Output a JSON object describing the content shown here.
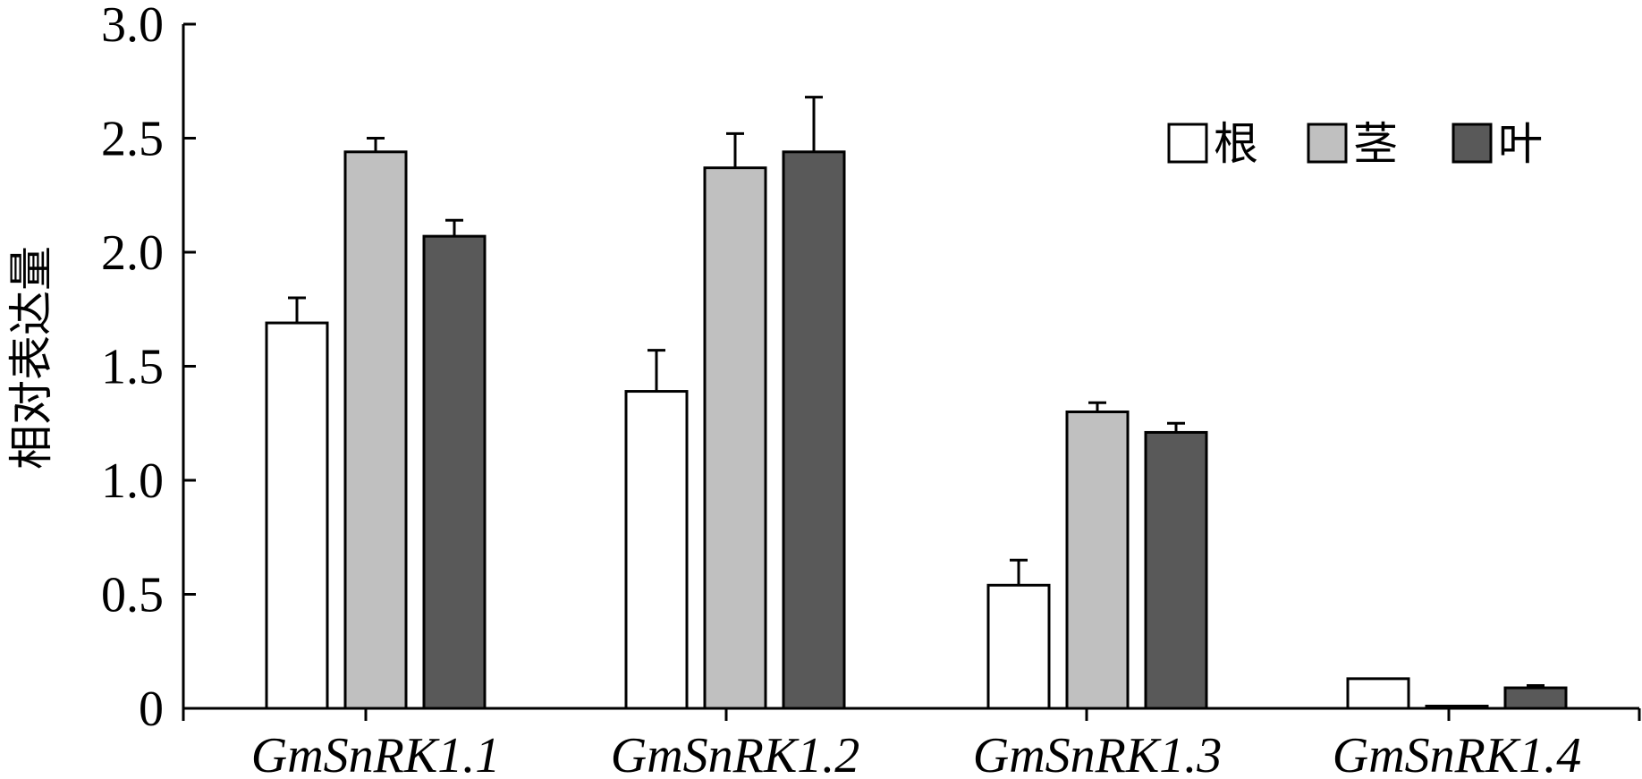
{
  "chart_data": {
    "type": "bar",
    "title": "",
    "xlabel": "",
    "ylabel": "相对表达量",
    "ylim": [
      0,
      3.0
    ],
    "yticks": [
      "0",
      "0.5",
      "1.0",
      "1.5",
      "2.0",
      "2.5",
      "3.0"
    ],
    "ytick_values": [
      0,
      0.5,
      1.0,
      1.5,
      2.0,
      2.5,
      3.0
    ],
    "categories": [
      "GmSnRK1.1",
      "GmSnRK1.2",
      "GmSnRK1.3",
      "GmSnRK1.4"
    ],
    "series": [
      {
        "name": "根",
        "color": "#ffffff",
        "values": [
          1.69,
          1.39,
          0.54,
          0.13
        ],
        "errors": [
          0.11,
          0.18,
          0.11,
          0.0
        ]
      },
      {
        "name": "茎",
        "color": "#c0c0c0",
        "values": [
          2.44,
          2.37,
          1.3,
          0.01
        ],
        "errors": [
          0.06,
          0.15,
          0.04,
          0.0
        ]
      },
      {
        "name": "叶",
        "color": "#595959",
        "values": [
          2.07,
          2.44,
          1.21,
          0.09
        ],
        "errors": [
          0.07,
          0.24,
          0.04,
          0.01
        ]
      }
    ],
    "legend_position": "top-right",
    "grid": false
  }
}
